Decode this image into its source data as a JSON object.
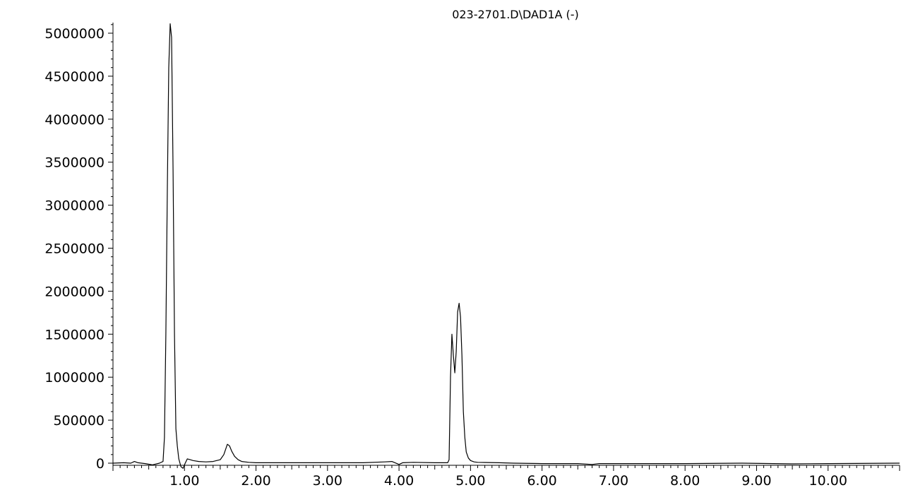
{
  "chart_data": {
    "type": "line",
    "title": "023-2701.D\\DAD1A (-)",
    "xlabel": "",
    "ylabel": "",
    "xlim": [
      0.0,
      11.0
    ],
    "ylim": [
      -100000,
      5150000
    ],
    "grid": false,
    "x_ticks": [
      1.0,
      2.0,
      3.0,
      4.0,
      5.0,
      6.0,
      7.0,
      8.0,
      9.0,
      10.0
    ],
    "x_tick_labels": [
      "1.00",
      "2.00",
      "3.00",
      "4.00",
      "5.00",
      "6.00",
      "7.00",
      "8.00",
      "9.00",
      "10.00"
    ],
    "y_ticks": [
      0,
      500000,
      1000000,
      1500000,
      2000000,
      2500000,
      3000000,
      3500000,
      4000000,
      4500000,
      5000000
    ],
    "y_tick_labels": [
      "0",
      "500000",
      "1000000",
      "1500000",
      "2000000",
      "2500000",
      "3000000",
      "3500000",
      "4000000",
      "4500000",
      "5000000"
    ],
    "series": [
      {
        "x": [
          0.0,
          0.15,
          0.25,
          0.3,
          0.35,
          0.45,
          0.55,
          0.65,
          0.7,
          0.72,
          0.74,
          0.76,
          0.78,
          0.8,
          0.82,
          0.84,
          0.86,
          0.88,
          0.9,
          0.92,
          0.95,
          0.98,
          1.01,
          1.04,
          1.08,
          1.12,
          1.2,
          1.3,
          1.4,
          1.5,
          1.55,
          1.6,
          1.63,
          1.66,
          1.7,
          1.75,
          1.8,
          1.9,
          2.0,
          2.2,
          2.6,
          3.0,
          3.5,
          3.8,
          3.9,
          4.0,
          4.05,
          4.2,
          4.5,
          4.68,
          4.7,
          4.72,
          4.74,
          4.76,
          4.78,
          4.8,
          4.82,
          4.84,
          4.86,
          4.88,
          4.9,
          4.92,
          4.94,
          4.97,
          5.0,
          5.05,
          5.1,
          5.2,
          5.4,
          5.6,
          6.0,
          6.5,
          6.7,
          6.8,
          7.0,
          8.0,
          8.8,
          9.5,
          10.0,
          11.0
        ],
        "y": [
          0,
          5000,
          0,
          20000,
          5000,
          -5000,
          -20000,
          0,
          20000,
          300000,
          1500000,
          3200000,
          4600000,
          5110000,
          4950000,
          3400000,
          1500000,
          400000,
          200000,
          50000,
          -40000,
          -60000,
          0,
          50000,
          40000,
          30000,
          20000,
          15000,
          20000,
          40000,
          100000,
          220000,
          200000,
          140000,
          80000,
          40000,
          20000,
          10000,
          5000,
          5000,
          5000,
          5000,
          5000,
          15000,
          20000,
          -15000,
          5000,
          10000,
          5000,
          5000,
          40000,
          1000000,
          1500000,
          1250000,
          1050000,
          1300000,
          1760000,
          1860000,
          1700000,
          1250000,
          600000,
          300000,
          130000,
          60000,
          30000,
          15000,
          10000,
          8000,
          5000,
          0,
          -5000,
          -5000,
          -15000,
          -5000,
          -5000,
          -5000,
          0,
          -8000,
          -5000,
          0
        ]
      }
    ]
  }
}
